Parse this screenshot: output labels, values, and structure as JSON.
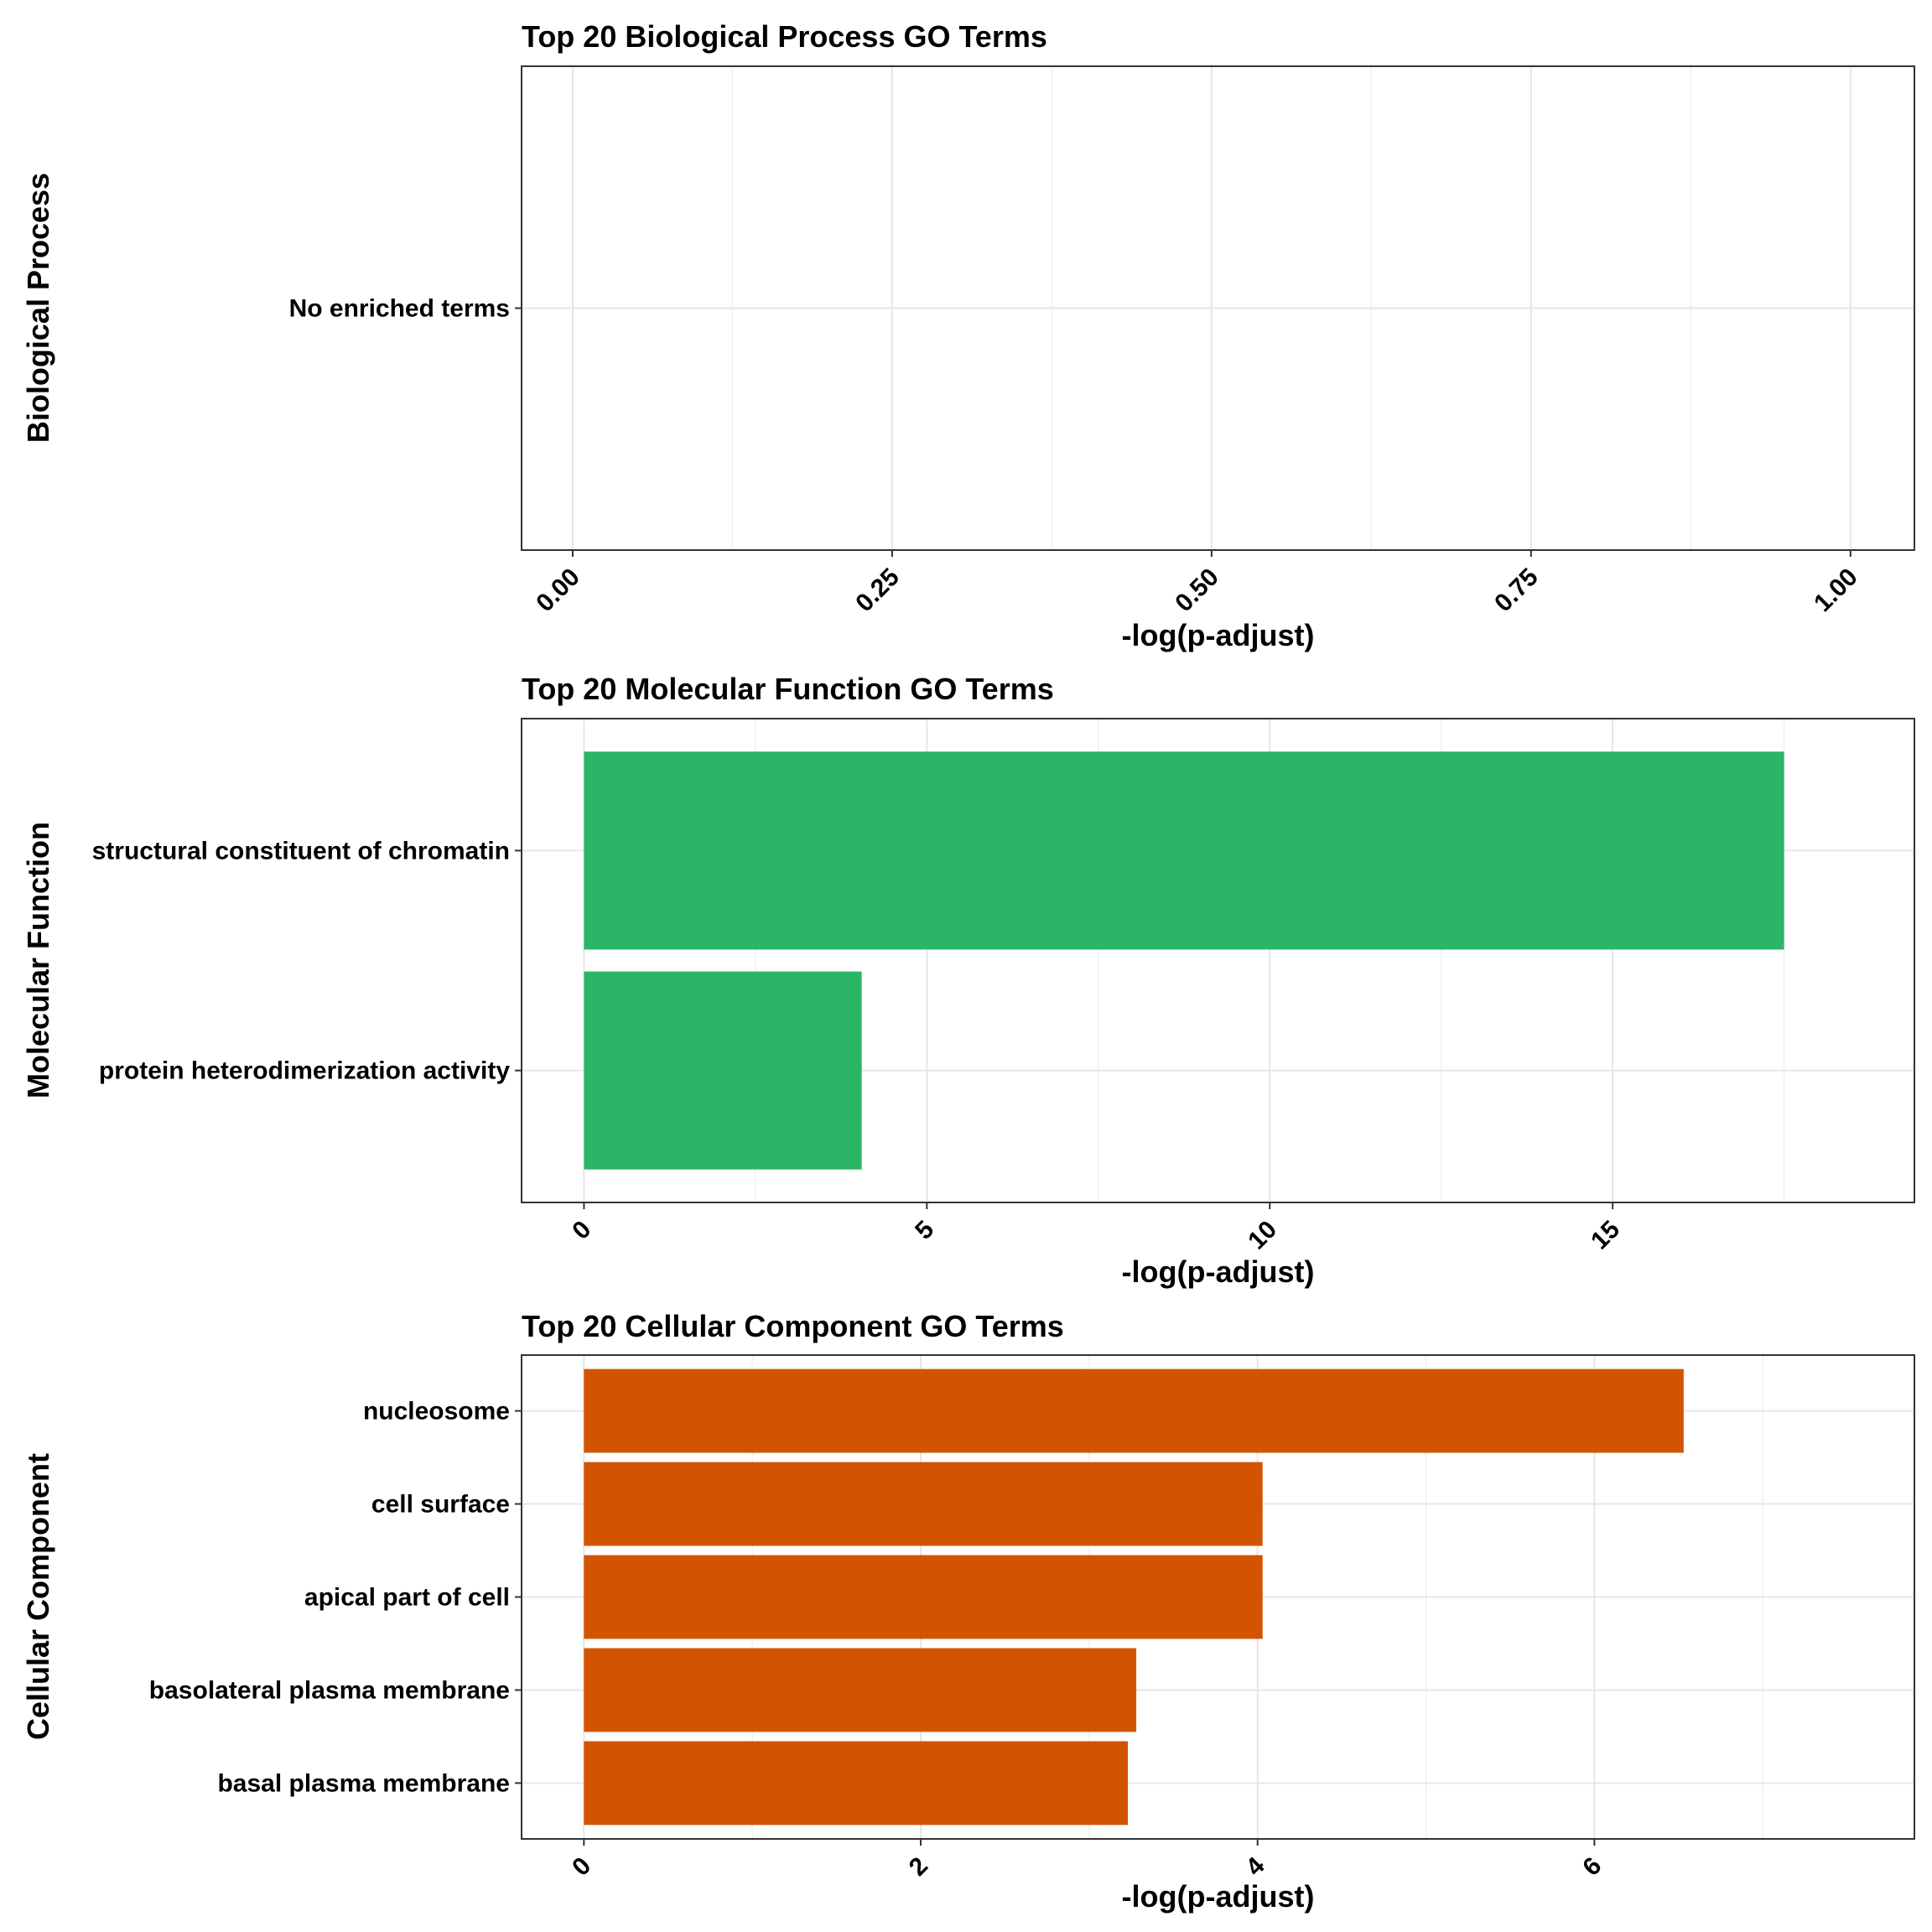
{
  "chart_data": [
    {
      "type": "bar",
      "orientation": "horizontal",
      "title": "Top 20 Biological Process GO Terms",
      "xlabel": "-log(p-adjust)",
      "ylabel": "Biological Process",
      "categories": [
        "No enriched terms"
      ],
      "values": [
        0
      ],
      "xlim": [
        -0.04,
        1.05
      ],
      "xticks": [
        0,
        0.25,
        0.5,
        0.75,
        1
      ],
      "xtick_labels": [
        "0.00",
        "0.25",
        "0.50",
        "0.75",
        "1.00"
      ],
      "grid": true,
      "bar_color": "#2BB566"
    },
    {
      "type": "bar",
      "orientation": "horizontal",
      "title": "Top 20 Molecular Function GO Terms",
      "xlabel": "-log(p-adjust)",
      "ylabel": "Molecular Function",
      "categories": [
        "structural constituent of chromatin",
        "protein heterodimerization activity"
      ],
      "values": [
        17.5,
        4.05
      ],
      "xlim": [
        -0.91,
        19.4
      ],
      "xticks": [
        0,
        5,
        10,
        15
      ],
      "xtick_labels": [
        "0",
        "5",
        "10",
        "15"
      ],
      "grid": true,
      "bar_color": "#2BB566"
    },
    {
      "type": "bar",
      "orientation": "horizontal",
      "title": "Top 20 Cellular Component GO Terms",
      "xlabel": "-log(p-adjust)",
      "ylabel": "Cellular Component",
      "categories": [
        "nucleosome",
        "cell surface",
        "apical part of cell",
        "basolateral plasma membrane",
        "basal plasma membrane"
      ],
      "values": [
        6.53,
        4.03,
        4.03,
        3.28,
        3.23
      ],
      "xlim": [
        -0.37,
        7.9
      ],
      "xticks": [
        0,
        2,
        4,
        6
      ],
      "xtick_labels": [
        "0",
        "2",
        "4",
        "6"
      ],
      "grid": true,
      "bar_color": "#D35400"
    }
  ]
}
